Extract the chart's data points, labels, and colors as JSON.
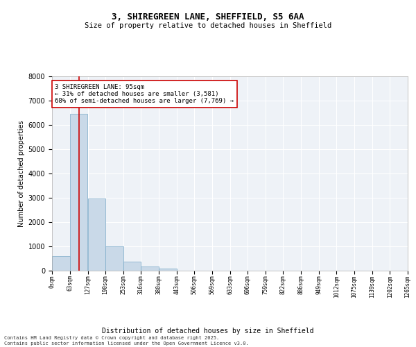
{
  "title_line1": "3, SHIREGREEN LANE, SHEFFIELD, S5 6AA",
  "title_line2": "Size of property relative to detached houses in Sheffield",
  "xlabel": "Distribution of detached houses by size in Sheffield",
  "ylabel": "Number of detached properties",
  "bar_color": "#c9d9e8",
  "bar_edge_color": "#7aaac8",
  "background_color": "#eef2f7",
  "grid_color": "#ffffff",
  "annotation_box_color": "#cc0000",
  "property_line_color": "#cc0000",
  "property_value": 95,
  "annotation_text_line1": "3 SHIREGREEN LANE: 95sqm",
  "annotation_text_line2": "← 31% of detached houses are smaller (3,581)",
  "annotation_text_line3": "68% of semi-detached houses are larger (7,769) →",
  "footnote_line1": "Contains HM Land Registry data © Crown copyright and database right 2025.",
  "footnote_line2": "Contains public sector information licensed under the Open Government Licence v3.0.",
  "bins": [
    0,
    63,
    127,
    190,
    253,
    316,
    380,
    443,
    506,
    569,
    633,
    696,
    759,
    822,
    886,
    949,
    1012,
    1075,
    1139,
    1202,
    1265
  ],
  "bin_labels": [
    "0sqm",
    "63sqm",
    "127sqm",
    "190sqm",
    "253sqm",
    "316sqm",
    "380sqm",
    "443sqm",
    "506sqm",
    "569sqm",
    "633sqm",
    "696sqm",
    "759sqm",
    "822sqm",
    "886sqm",
    "949sqm",
    "1012sqm",
    "1075sqm",
    "1139sqm",
    "1202sqm",
    "1265sqm"
  ],
  "counts": [
    600,
    6450,
    2970,
    990,
    370,
    160,
    80,
    0,
    0,
    0,
    0,
    0,
    0,
    0,
    0,
    0,
    0,
    0,
    0,
    0
  ],
  "ylim": [
    0,
    8000
  ],
  "yticks": [
    0,
    1000,
    2000,
    3000,
    4000,
    5000,
    6000,
    7000,
    8000
  ]
}
